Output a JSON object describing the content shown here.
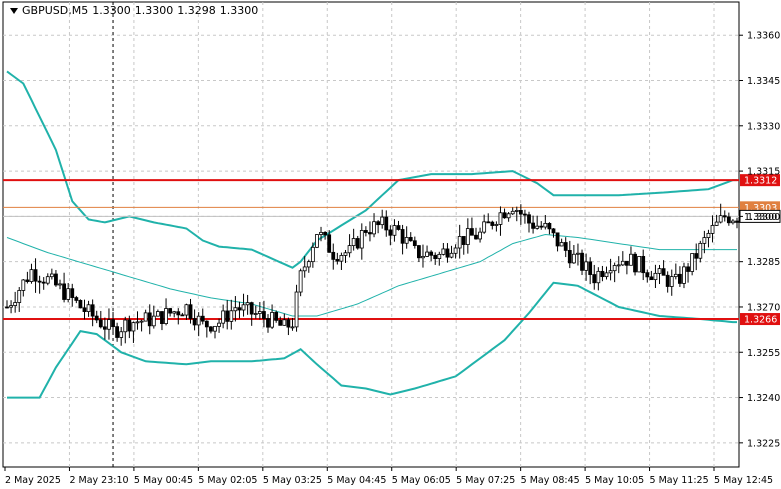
{
  "header": {
    "symbol": "GBPUSD,M5",
    "open": "1.3300",
    "high": "1.3300",
    "low": "1.3298",
    "close": "1.3300"
  },
  "colors": {
    "grid": "#c8c8c8",
    "bollinger": "#20b2aa",
    "candle": "#000000",
    "level": "#e01010",
    "bid": "#c0c0c0",
    "orange": "#e08040"
  },
  "chart_data": {
    "type": "candlestick",
    "title": "",
    "ylim": [
      1.3217,
      1.3371
    ],
    "y_ticks": [
      "1.3360",
      "1.3345",
      "1.3330",
      "1.3315",
      "1.3300",
      "1.3285",
      "1.3270",
      "1.3255",
      "1.3240",
      "1.3225"
    ],
    "y_tick_values": [
      1.336,
      1.3345,
      1.333,
      1.3315,
      1.33,
      1.3285,
      1.327,
      1.3255,
      1.324,
      1.3225
    ],
    "x_labels": [
      "2 May 2025",
      "2 May 23:10",
      "5 May 00:45",
      "5 May 02:05",
      "5 May 03:25",
      "5 May 04:45",
      "5 May 06:05",
      "5 May 07:25",
      "5 May 08:45",
      "5 May 10:05",
      "5 May 11:25",
      "5 May 12:45"
    ],
    "bar_count": 180,
    "levels": [
      {
        "label": "1.3312",
        "value": 1.3312,
        "kind": "resistance"
      },
      {
        "label": "1.3266",
        "value": 1.3266,
        "kind": "support"
      }
    ],
    "price_labels": [
      {
        "label": "1.3303",
        "value": 1.3303,
        "kind": "orange"
      },
      {
        "label": "1.3300",
        "value": 1.33,
        "kind": "bid"
      }
    ],
    "crosshair_index": 26,
    "upper_band": [
      [
        0,
        1.3348
      ],
      [
        4,
        1.3344
      ],
      [
        8,
        1.3333
      ],
      [
        12,
        1.3322
      ],
      [
        16,
        1.3305
      ],
      [
        20,
        1.3299
      ],
      [
        24,
        1.3298
      ],
      [
        30,
        1.33
      ],
      [
        36,
        1.3298
      ],
      [
        44,
        1.3296
      ],
      [
        48,
        1.3292
      ],
      [
        52,
        1.329
      ],
      [
        60,
        1.3289
      ],
      [
        70,
        1.3283
      ],
      [
        72,
        1.3285
      ],
      [
        76,
        1.3292
      ],
      [
        82,
        1.3297
      ],
      [
        88,
        1.3302
      ],
      [
        96,
        1.3312
      ],
      [
        104,
        1.3314
      ],
      [
        114,
        1.3314
      ],
      [
        124,
        1.3315
      ],
      [
        130,
        1.3311
      ],
      [
        134,
        1.3307
      ],
      [
        140,
        1.3307
      ],
      [
        150,
        1.3307
      ],
      [
        162,
        1.3308
      ],
      [
        172,
        1.3309
      ],
      [
        178,
        1.3312
      ]
    ],
    "middle_band": [
      [
        0,
        1.3293
      ],
      [
        10,
        1.3288
      ],
      [
        20,
        1.3284
      ],
      [
        30,
        1.328
      ],
      [
        40,
        1.3276
      ],
      [
        50,
        1.3273
      ],
      [
        60,
        1.3271
      ],
      [
        70,
        1.3267
      ],
      [
        76,
        1.3267
      ],
      [
        86,
        1.3271
      ],
      [
        96,
        1.3277
      ],
      [
        106,
        1.3281
      ],
      [
        116,
        1.3285
      ],
      [
        124,
        1.3291
      ],
      [
        132,
        1.3294
      ],
      [
        140,
        1.3293
      ],
      [
        150,
        1.3291
      ],
      [
        160,
        1.3289
      ],
      [
        170,
        1.3289
      ],
      [
        178,
        1.3289
      ]
    ],
    "lower_band": [
      [
        0,
        1.324
      ],
      [
        8,
        1.324
      ],
      [
        12,
        1.325
      ],
      [
        18,
        1.3262
      ],
      [
        22,
        1.3261
      ],
      [
        28,
        1.3255
      ],
      [
        34,
        1.3252
      ],
      [
        44,
        1.3251
      ],
      [
        50,
        1.3252
      ],
      [
        60,
        1.3252
      ],
      [
        68,
        1.3253
      ],
      [
        72,
        1.3256
      ],
      [
        76,
        1.3251
      ],
      [
        82,
        1.3244
      ],
      [
        88,
        1.3243
      ],
      [
        94,
        1.3241
      ],
      [
        100,
        1.3243
      ],
      [
        110,
        1.3247
      ],
      [
        116,
        1.3253
      ],
      [
        122,
        1.3259
      ],
      [
        128,
        1.3268
      ],
      [
        134,
        1.3278
      ],
      [
        140,
        1.3277
      ],
      [
        150,
        1.327
      ],
      [
        160,
        1.3267
      ],
      [
        170,
        1.3266
      ],
      [
        178,
        1.3265
      ]
    ],
    "close_path": [
      [
        0,
        1.327
      ],
      [
        6,
        1.3282
      ],
      [
        10,
        1.3279
      ],
      [
        14,
        1.3275
      ],
      [
        18,
        1.327
      ],
      [
        22,
        1.3266
      ],
      [
        26,
        1.3262
      ],
      [
        30,
        1.3265
      ],
      [
        36,
        1.3266
      ],
      [
        40,
        1.3268
      ],
      [
        44,
        1.327
      ],
      [
        48,
        1.3264
      ],
      [
        52,
        1.3265
      ],
      [
        56,
        1.327
      ],
      [
        60,
        1.3268
      ],
      [
        64,
        1.3266
      ],
      [
        68,
        1.3263
      ],
      [
        70,
        1.3265
      ],
      [
        72,
        1.328
      ],
      [
        76,
        1.3295
      ],
      [
        80,
        1.3288
      ],
      [
        84,
        1.3288
      ],
      [
        88,
        1.3296
      ],
      [
        92,
        1.3297
      ],
      [
        96,
        1.3295
      ],
      [
        100,
        1.3288
      ],
      [
        106,
        1.3287
      ],
      [
        110,
        1.3292
      ],
      [
        116,
        1.3294
      ],
      [
        120,
        1.33
      ],
      [
        124,
        1.3304
      ],
      [
        128,
        1.3298
      ],
      [
        132,
        1.3296
      ],
      [
        136,
        1.329
      ],
      [
        140,
        1.3285
      ],
      [
        144,
        1.328
      ],
      [
        148,
        1.3285
      ],
      [
        152,
        1.3286
      ],
      [
        156,
        1.3283
      ],
      [
        160,
        1.328
      ],
      [
        164,
        1.3278
      ],
      [
        168,
        1.3285
      ],
      [
        172,
        1.3294
      ],
      [
        176,
        1.33
      ],
      [
        179,
        1.33
      ]
    ]
  }
}
